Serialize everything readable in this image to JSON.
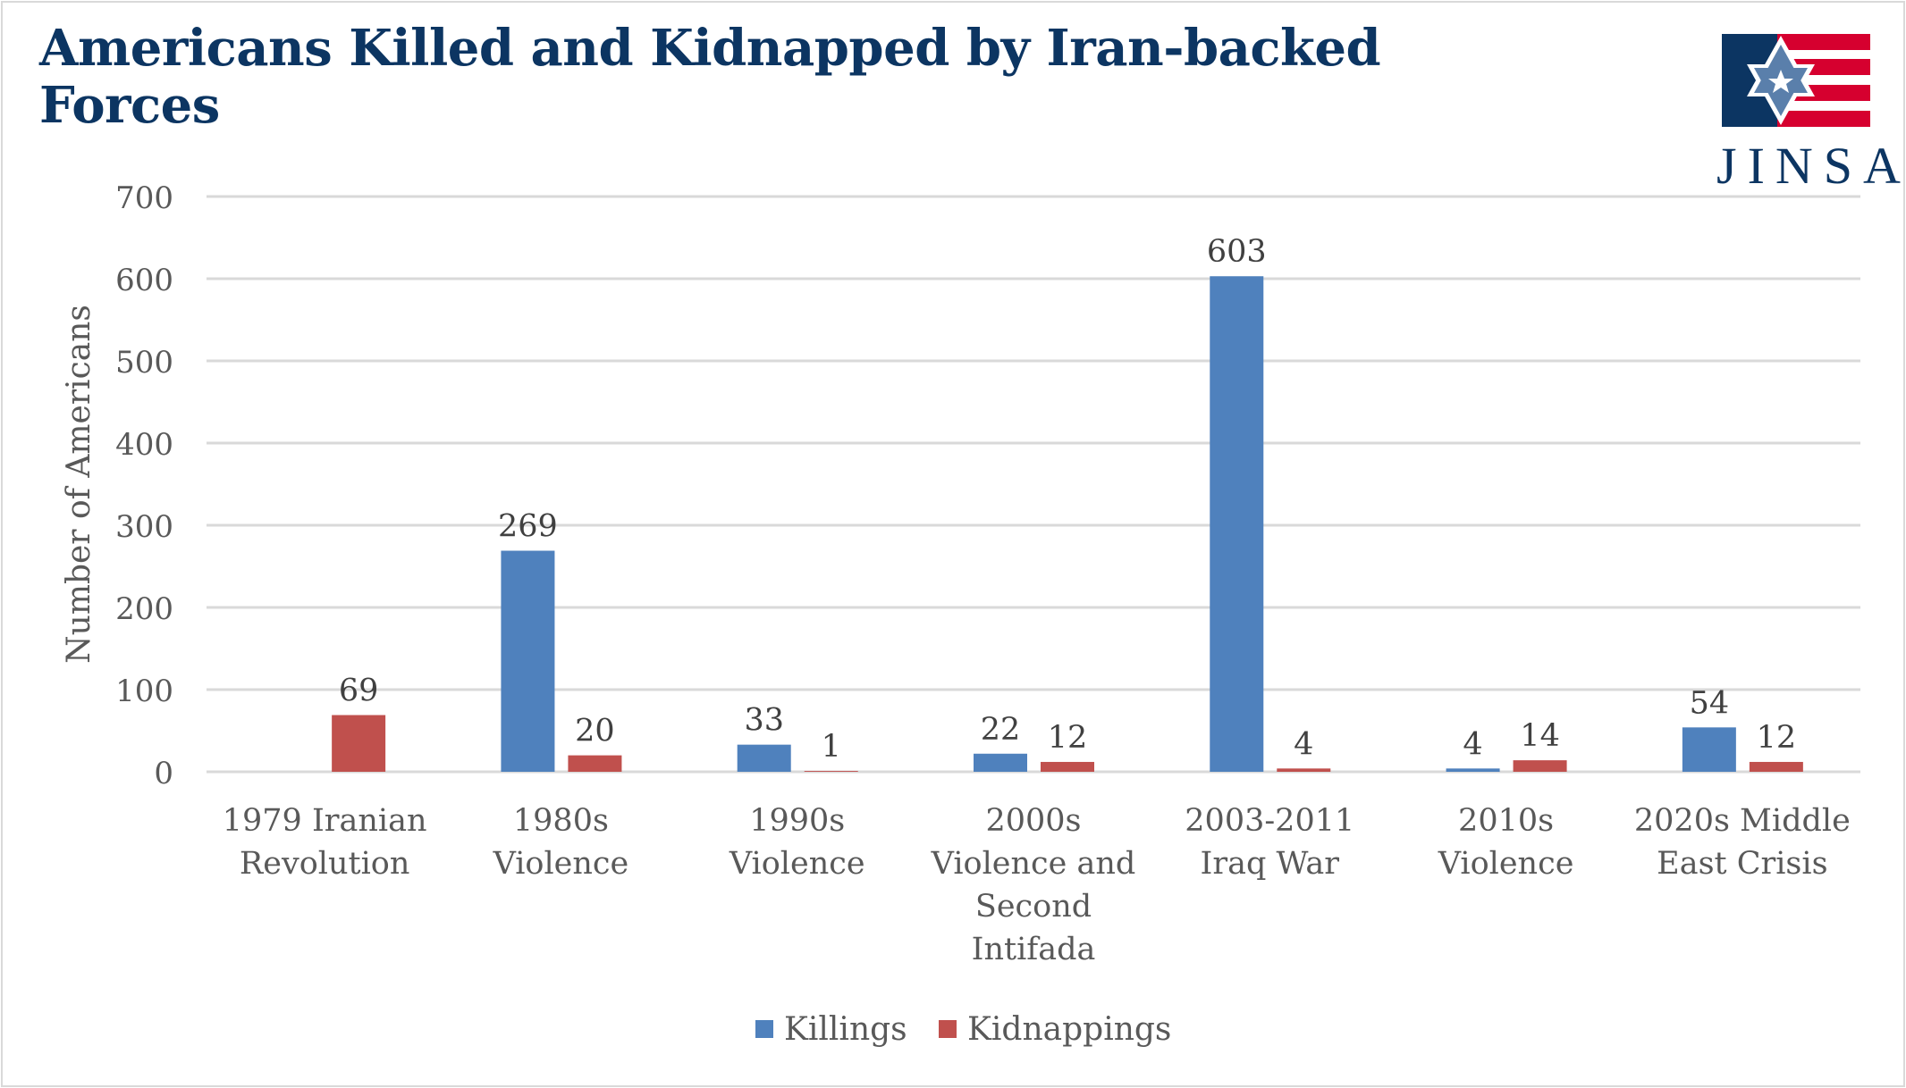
{
  "chart_data": {
    "type": "bar",
    "title": "Americans Killed and Kidnapped by Iran-backed Forces",
    "xlabel": "",
    "ylabel": "Number of Americans",
    "ylim": [
      0,
      700
    ],
    "yticks": [
      0,
      100,
      200,
      300,
      400,
      500,
      600,
      700
    ],
    "grid": true,
    "legend_position": "bottom",
    "categories": [
      [
        "1979 Iranian",
        "Revolution"
      ],
      [
        "1980s",
        "Violence"
      ],
      [
        "1990s",
        "Violence"
      ],
      [
        "2000s",
        "Violence and",
        "Second",
        "Intifada"
      ],
      [
        "2003-2011",
        "Iraq War"
      ],
      [
        "2010s",
        "Violence"
      ],
      [
        "2020s Middle",
        "East Crisis"
      ]
    ],
    "series": [
      {
        "name": "Killings",
        "color": "#4f81bd",
        "values": [
          null,
          269,
          33,
          22,
          603,
          4,
          54
        ]
      },
      {
        "name": "Kidnappings",
        "color": "#c0504d",
        "values": [
          69,
          20,
          1,
          12,
          4,
          14,
          12
        ]
      }
    ]
  },
  "logo": {
    "text": "JINSA"
  }
}
